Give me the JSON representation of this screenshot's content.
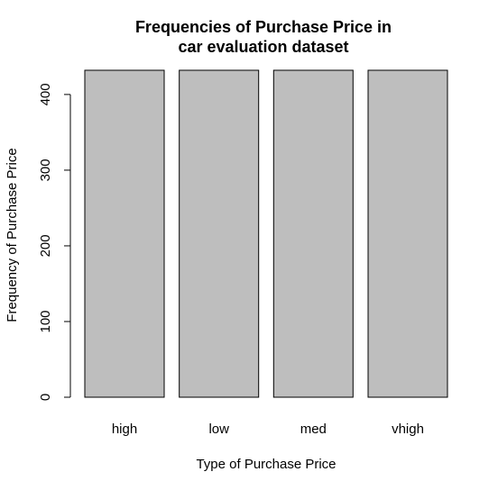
{
  "chart_data": {
    "type": "bar",
    "title": [
      "Frequencies of Purchase Price in",
      "car evaluation dataset"
    ],
    "xlabel": "Type of Purchase Price",
    "ylabel": "Frequency of Purchase Price",
    "categories": [
      "high",
      "low",
      "med",
      "vhigh"
    ],
    "values": [
      432,
      432,
      432,
      432
    ],
    "yticks": [
      0,
      100,
      200,
      300,
      400
    ],
    "ylim": [
      0,
      432
    ],
    "grid": false,
    "legend": "none",
    "bar_color": "#bebebe",
    "bar_border_color": "#000000"
  }
}
